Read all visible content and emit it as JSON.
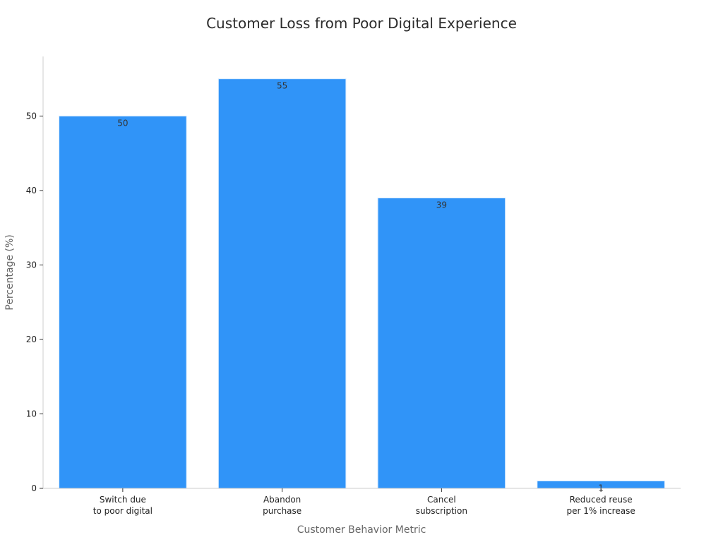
{
  "chart_data": {
    "type": "bar",
    "title": "Customer Loss from Poor Digital Experience",
    "xlabel": "Customer Behavior Metric",
    "ylabel": "Percentage (%)",
    "categories": [
      [
        "Switch due",
        "to poor digital"
      ],
      [
        "Abandon",
        "purchase"
      ],
      [
        "Cancel",
        "subscription"
      ],
      [
        "Reduced reuse",
        "per 1% increase"
      ]
    ],
    "values": [
      50,
      55,
      39,
      1
    ],
    "value_labels": [
      "50",
      "55",
      "39",
      "1"
    ],
    "ylim": [
      0,
      58
    ],
    "yticks": [
      0,
      10,
      20,
      30,
      40,
      50
    ],
    "bar_color": "#3094f8",
    "grid": false,
    "legend": "none"
  }
}
